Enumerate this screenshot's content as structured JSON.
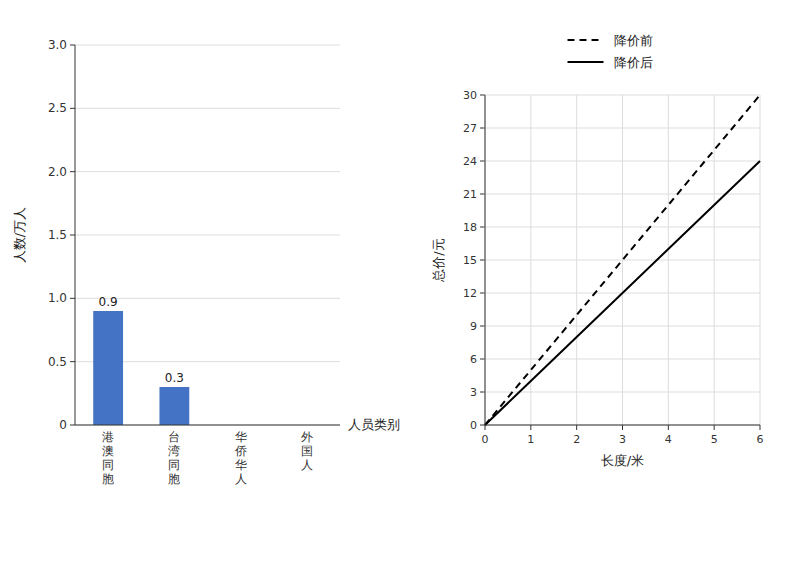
{
  "chart_data": [
    {
      "type": "bar",
      "categories": [
        "港\n澳\n同\n胞",
        "台\n湾\n同\n胞",
        "华\n侨\n华\n人",
        "外\n国\n人"
      ],
      "values": [
        0.9,
        0.3,
        0.0,
        0.0
      ],
      "value_labels": [
        "0.9",
        "0.3",
        null,
        null
      ],
      "color": "#4472c4",
      "xlabel": "人员类别",
      "ylabel": "人数/万人",
      "ylim": [
        0,
        3.0
      ],
      "yticks": [
        0,
        0.5,
        {
          "value": 1.0,
          "label": "1.0"
        },
        1.5,
        {
          "value": 2.0,
          "label": "2.0"
        },
        2.5,
        {
          "value": 3.0,
          "label": "3.0"
        }
      ],
      "grid": "y"
    },
    {
      "type": "line",
      "x": [
        0,
        1,
        2,
        3,
        4,
        5,
        6
      ],
      "series": [
        {
          "name": "降价前",
          "color": "#000000",
          "line_style": "dashed",
          "values": [
            0,
            5,
            10,
            15,
            20,
            25,
            30
          ]
        },
        {
          "name": "降价后",
          "color": "#000000",
          "line_style": "solid",
          "values": [
            0,
            4,
            8,
            12,
            16,
            20,
            24
          ]
        }
      ],
      "xlabel": "长度/米",
      "ylabel": "总价/元",
      "xlim": [
        0,
        6
      ],
      "ylim": [
        0,
        30
      ],
      "xticks": [
        0,
        1,
        2,
        3,
        4,
        5,
        6
      ],
      "yticks": [
        0,
        3,
        6,
        9,
        12,
        15,
        18,
        21,
        24,
        27,
        30
      ],
      "grid": true,
      "legend": "top"
    }
  ]
}
